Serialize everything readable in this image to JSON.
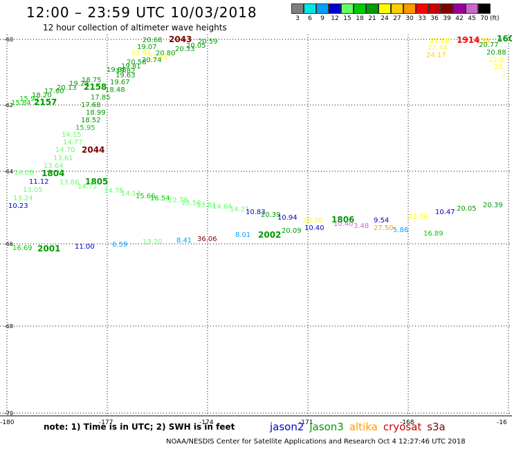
{
  "header": {
    "title": "12:00 – 23:59 UTC 10/03/2018",
    "subtitle": "12 hour collection of altimeter wave heights"
  },
  "scale": {
    "colors": [
      "#7f7f7f",
      "#00e6e6",
      "#00a0ff",
      "#0000cc",
      "#66ff66",
      "#00cc00",
      "#009900",
      "#ffff00",
      "#ffcc00",
      "#ff9900",
      "#ff0000",
      "#cc0000",
      "#800000",
      "#990099",
      "#cc66cc",
      "#000000"
    ],
    "labels": [
      "",
      "3",
      "6",
      "9",
      "12",
      "15",
      "18",
      "21",
      "24",
      "27",
      "30",
      "33",
      "36",
      "39",
      "42",
      "45",
      "70"
    ],
    "unit": "(ft)"
  },
  "map": {
    "lon_ticks": [
      "-180",
      "-177",
      "-174",
      "-171",
      "-168",
      "-16"
    ],
    "lat_ticks": [
      "-60",
      "-62",
      "-64",
      "-66",
      "-68",
      "-70"
    ]
  },
  "observations": [
    {
      "t": "20.68",
      "c": "#009900"
    },
    {
      "t": "2043",
      "c": "#800000"
    },
    {
      "t": "20.59",
      "c": "#009900"
    },
    {
      "t": "19.07",
      "c": "#009900"
    },
    {
      "t": "20.05",
      "c": "#009900"
    },
    {
      "t": "21.61",
      "c": "#ffff00"
    },
    {
      "t": "20.80",
      "c": "#009900"
    },
    {
      "t": "20.33",
      "c": "#009900"
    },
    {
      "t": "22.18",
      "c": "#ffff00"
    },
    {
      "t": "20.74",
      "c": "#009900"
    },
    {
      "t": "20.58",
      "c": "#009900"
    },
    {
      "t": "19.82",
      "c": "#009900"
    },
    {
      "t": "19.81",
      "c": "#009900"
    },
    {
      "t": "19.88",
      "c": "#009900"
    },
    {
      "t": "19.63",
      "c": "#009900"
    },
    {
      "t": "19.67",
      "c": "#009900"
    },
    {
      "t": "18.75",
      "c": "#009900"
    },
    {
      "t": "18.48",
      "c": "#009900"
    },
    {
      "t": "17.85",
      "c": "#009900"
    },
    {
      "t": "2158",
      "c": "#009900"
    },
    {
      "t": "20.13",
      "c": "#009900"
    },
    {
      "t": "19.28",
      "c": "#009900"
    },
    {
      "t": "17.60",
      "c": "#009900"
    },
    {
      "t": "18.20",
      "c": "#009900"
    },
    {
      "t": "15.84",
      "c": "#00cc00"
    },
    {
      "t": "15.92",
      "c": "#00cc00"
    },
    {
      "t": "2157",
      "c": "#009900"
    },
    {
      "t": "17.68",
      "c": "#009900"
    },
    {
      "t": "18.99",
      "c": "#009900"
    },
    {
      "t": "18.52",
      "c": "#009900"
    },
    {
      "t": "15.95",
      "c": "#00cc00"
    },
    {
      "t": "14.15",
      "c": "#66ff66"
    },
    {
      "t": "14.77",
      "c": "#66ff66"
    },
    {
      "t": "14.70",
      "c": "#66ff66"
    },
    {
      "t": "2044",
      "c": "#800000"
    },
    {
      "t": "13.61",
      "c": "#66ff66"
    },
    {
      "t": "13.64",
      "c": "#66ff66"
    },
    {
      "t": "14.09",
      "c": "#66ff66"
    },
    {
      "t": "1804",
      "c": "#009900"
    },
    {
      "t": "11.12",
      "c": "#0000cc"
    },
    {
      "t": "13.86",
      "c": "#66ff66"
    },
    {
      "t": "1805",
      "c": "#009900"
    },
    {
      "t": "14.72",
      "c": "#66ff66"
    },
    {
      "t": "13.05",
      "c": "#66ff66"
    },
    {
      "t": "13.24",
      "c": "#66ff66"
    },
    {
      "t": "14.76",
      "c": "#66ff66"
    },
    {
      "t": "14.14",
      "c": "#66ff66"
    },
    {
      "t": "15.66",
      "c": "#00cc00"
    },
    {
      "t": "16.54",
      "c": "#00cc00"
    },
    {
      "t": "12.78",
      "c": "#66ff66"
    },
    {
      "t": "13.58",
      "c": "#66ff66"
    },
    {
      "t": "13.81",
      "c": "#66ff66"
    },
    {
      "t": "14.64",
      "c": "#66ff66"
    },
    {
      "t": "14.21",
      "c": "#66ff66"
    },
    {
      "t": "10.23",
      "c": "#0000cc"
    },
    {
      "t": "10.83",
      "c": "#0000cc"
    },
    {
      "t": "20.39",
      "c": "#009900"
    },
    {
      "t": "10.94",
      "c": "#0000cc"
    },
    {
      "t": "23.30",
      "c": "#ffff00"
    },
    {
      "t": "1806",
      "c": "#009900"
    },
    {
      "t": "9.54",
      "c": "#0000cc"
    },
    {
      "t": "23.76",
      "c": "#ffff00"
    },
    {
      "t": "10.47",
      "c": "#0000cc"
    },
    {
      "t": "20.05",
      "c": "#009900"
    },
    {
      "t": "20.39",
      "c": "#009900"
    },
    {
      "t": "10.40",
      "c": "#0000cc"
    },
    {
      "t": "10.40",
      "c": "#cc66cc"
    },
    {
      "t": "3.48",
      "c": "#cc66cc"
    },
    {
      "t": "27.50",
      "c": "#ff9900"
    },
    {
      "t": "5.86",
      "c": "#00a0ff"
    },
    {
      "t": "16.89",
      "c": "#00cc00"
    },
    {
      "t": "8.01",
      "c": "#00a0ff"
    },
    {
      "t": "2002",
      "c": "#009900"
    },
    {
      "t": "20.09",
      "c": "#009900"
    },
    {
      "t": "16.69",
      "c": "#00cc00"
    },
    {
      "t": "2001",
      "c": "#009900"
    },
    {
      "t": "11.00",
      "c": "#0000cc"
    },
    {
      "t": "6.59",
      "c": "#00a0ff"
    },
    {
      "t": "13.20",
      "c": "#66ff66"
    },
    {
      "t": "8.41",
      "c": "#00a0ff"
    },
    {
      "t": "36.06",
      "c": "#800000"
    },
    {
      "t": "21.88",
      "c": "#ffff00"
    },
    {
      "t": "1914",
      "c": "#ff0000"
    },
    {
      "t": "38",
      "c": "#ffcc00"
    },
    {
      "t": "160",
      "c": "#009900"
    },
    {
      "t": "22.44",
      "c": "#ffff00"
    },
    {
      "t": "20.77",
      "c": "#009900"
    },
    {
      "t": "24.17",
      "c": "#ffcc00"
    },
    {
      "t": "20.88",
      "c": "#009900"
    },
    {
      "t": "22.8",
      "c": "#ffff00"
    },
    {
      "t": "22.",
      "c": "#ffff00"
    },
    {
      "t": "2",
      "c": "#ffff00"
    }
  ],
  "footer": {
    "note": "note: 1) Time is in UTC; 2) SWH is in feet",
    "satellites": [
      {
        "name": "jason2",
        "color": "#0000cc"
      },
      {
        "name": "jason3",
        "color": "#009900"
      },
      {
        "name": "altika",
        "color": "#ff9900"
      },
      {
        "name": "cryosat",
        "color": "#cc0000"
      },
      {
        "name": "s3a",
        "color": "#800000"
      }
    ],
    "credit": "NOAA/NESDIS Center for Satellite Applications and Research    Oct  4 12:27:46 UTC 2018"
  }
}
